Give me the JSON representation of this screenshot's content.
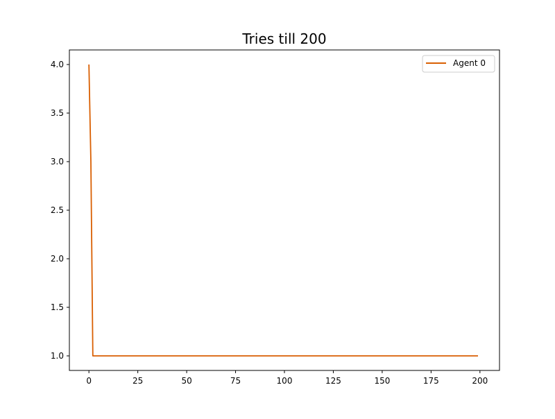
{
  "chart_data": {
    "type": "line",
    "title": "Tries till 200",
    "xlabel": "",
    "ylabel": "",
    "xlim": [
      -10,
      210
    ],
    "ylim": [
      0.85,
      4.15
    ],
    "x_ticks": [
      0,
      25,
      50,
      75,
      100,
      125,
      150,
      175,
      200
    ],
    "y_ticks": [
      1.0,
      1.5,
      2.0,
      2.5,
      3.0,
      3.5,
      4.0
    ],
    "x_tick_labels": [
      "0",
      "25",
      "50",
      "75",
      "100",
      "125",
      "150",
      "175",
      "200"
    ],
    "y_tick_labels": [
      "1.0",
      "1.5",
      "2.0",
      "2.5",
      "3.0",
      "3.5",
      "4.0"
    ],
    "grid": false,
    "legend_position": "top-right",
    "series": [
      {
        "name": "Agent 0",
        "color": "#d95f02",
        "x": [
          0,
          1,
          2,
          199
        ],
        "y": [
          4.0,
          3.0,
          1.0,
          1.0
        ]
      }
    ]
  }
}
